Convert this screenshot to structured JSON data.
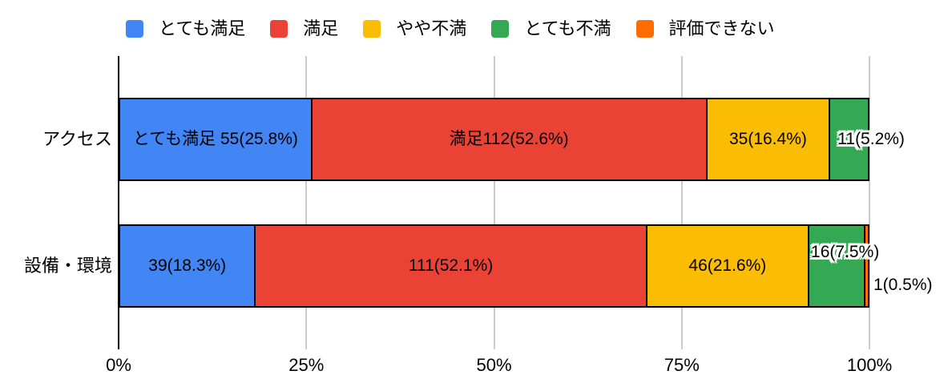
{
  "chart_data": {
    "type": "bar",
    "stacked": true,
    "orientation": "horizontal",
    "grid": true,
    "x_axis": {
      "ticks": [
        "0%",
        "25%",
        "50%",
        "75%",
        "100%"
      ],
      "range": [
        0,
        100
      ]
    },
    "legend": {
      "position": "top",
      "items": [
        {
          "series": "とても満足",
          "color": "#4285F4"
        },
        {
          "series": "満足",
          "color": "#EA4335"
        },
        {
          "series": "やや不満",
          "color": "#FBBC04"
        },
        {
          "series": "とても不満",
          "color": "#34A853"
        },
        {
          "series": "評価できない",
          "color": "#FF6D01"
        }
      ]
    },
    "rows": [
      {
        "category": "アクセス",
        "segments": [
          {
            "series": "とても満足",
            "value": 55,
            "pct": 25.8,
            "label": "とても満足 55(25.8%)",
            "label_placement": "inside"
          },
          {
            "series": "満足",
            "value": 112,
            "pct": 52.6,
            "label": "満足112(52.6%)",
            "label_placement": "inside"
          },
          {
            "series": "やや不満",
            "value": 35,
            "pct": 16.4,
            "label": "35(16.4%)",
            "label_placement": "inside"
          },
          {
            "series": "とても不満",
            "value": 11,
            "pct": 5.2,
            "label": "11(5.2%)",
            "label_placement": "overflow",
            "label_dx": 9,
            "label_dy": 0
          }
        ]
      },
      {
        "category": "設備・環境",
        "segments": [
          {
            "series": "とても満足",
            "value": 39,
            "pct": 18.3,
            "label": "39(18.3%)",
            "label_placement": "inside"
          },
          {
            "series": "満足",
            "value": 111,
            "pct": 52.1,
            "label": "111(52.1%)",
            "label_placement": "inside"
          },
          {
            "series": "やや不満",
            "value": 46,
            "pct": 21.6,
            "label": "46(21.6%)",
            "label_placement": "inside"
          },
          {
            "series": "とても不満",
            "value": 16,
            "pct": 7.5,
            "label": "16(7.5%)",
            "label_placement": "overflow",
            "label_dx": 2,
            "label_dy": -17
          },
          {
            "series": "評価できない",
            "value": 1,
            "pct": 0.5,
            "label": "1(0.5%)",
            "label_placement": "outside",
            "label_dx": 5,
            "label_dy": 24
          }
        ]
      }
    ],
    "colors": {
      "grid_line": "#cccccc",
      "axis_line": "#000000",
      "segment_border": "#000000",
      "label_text": "#000000",
      "background": "#ffffff"
    }
  }
}
